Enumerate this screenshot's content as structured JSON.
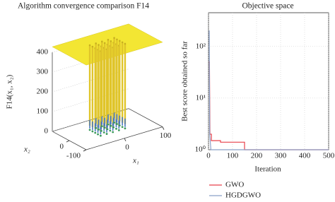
{
  "chart_data": [
    {
      "type": "surface",
      "title": "Algorithm convergence comparison F14",
      "zlabel": "F14(x₁, x₂)",
      "xlabel": "x₁",
      "ylabel": "x₂",
      "xlim": [
        -100,
        100
      ],
      "ylim": [
        -100,
        100
      ],
      "zlim": [
        0,
        400
      ],
      "xticks": [
        0,
        100
      ],
      "yticks": [
        -100,
        0
      ],
      "zticks": [
        0,
        100,
        200,
        300,
        400
      ],
      "color": "#f3e633"
    },
    {
      "type": "line",
      "title": "Objective space",
      "xlabel": "Iteration",
      "ylabel": "Best score obtained so far",
      "xlim": [
        0,
        500
      ],
      "xticks": [
        0,
        100,
        200,
        300,
        400,
        500
      ],
      "ylim": [
        1,
        450
      ],
      "yscale": "log",
      "yticks": [
        {
          "value": 1,
          "label": "10⁰"
        },
        {
          "value": 10,
          "label": "10¹"
        },
        {
          "value": 100,
          "label": "10²"
        }
      ],
      "grid": true,
      "legend": "bottom",
      "series": [
        {
          "name": "GWO",
          "color": "#e8404a",
          "x": [
            1,
            4,
            6,
            12,
            12,
            50,
            50,
            150,
            150,
            500
          ],
          "values": [
            50,
            50,
            2,
            2,
            1.5,
            1.5,
            1.4,
            1.4,
            1,
            1
          ]
        },
        {
          "name": "HGDGWO",
          "color": "#8aa0c8",
          "x": [
            1,
            3,
            5,
            10,
            500
          ],
          "values": [
            200,
            200,
            2,
            1,
            1
          ]
        }
      ]
    }
  ]
}
